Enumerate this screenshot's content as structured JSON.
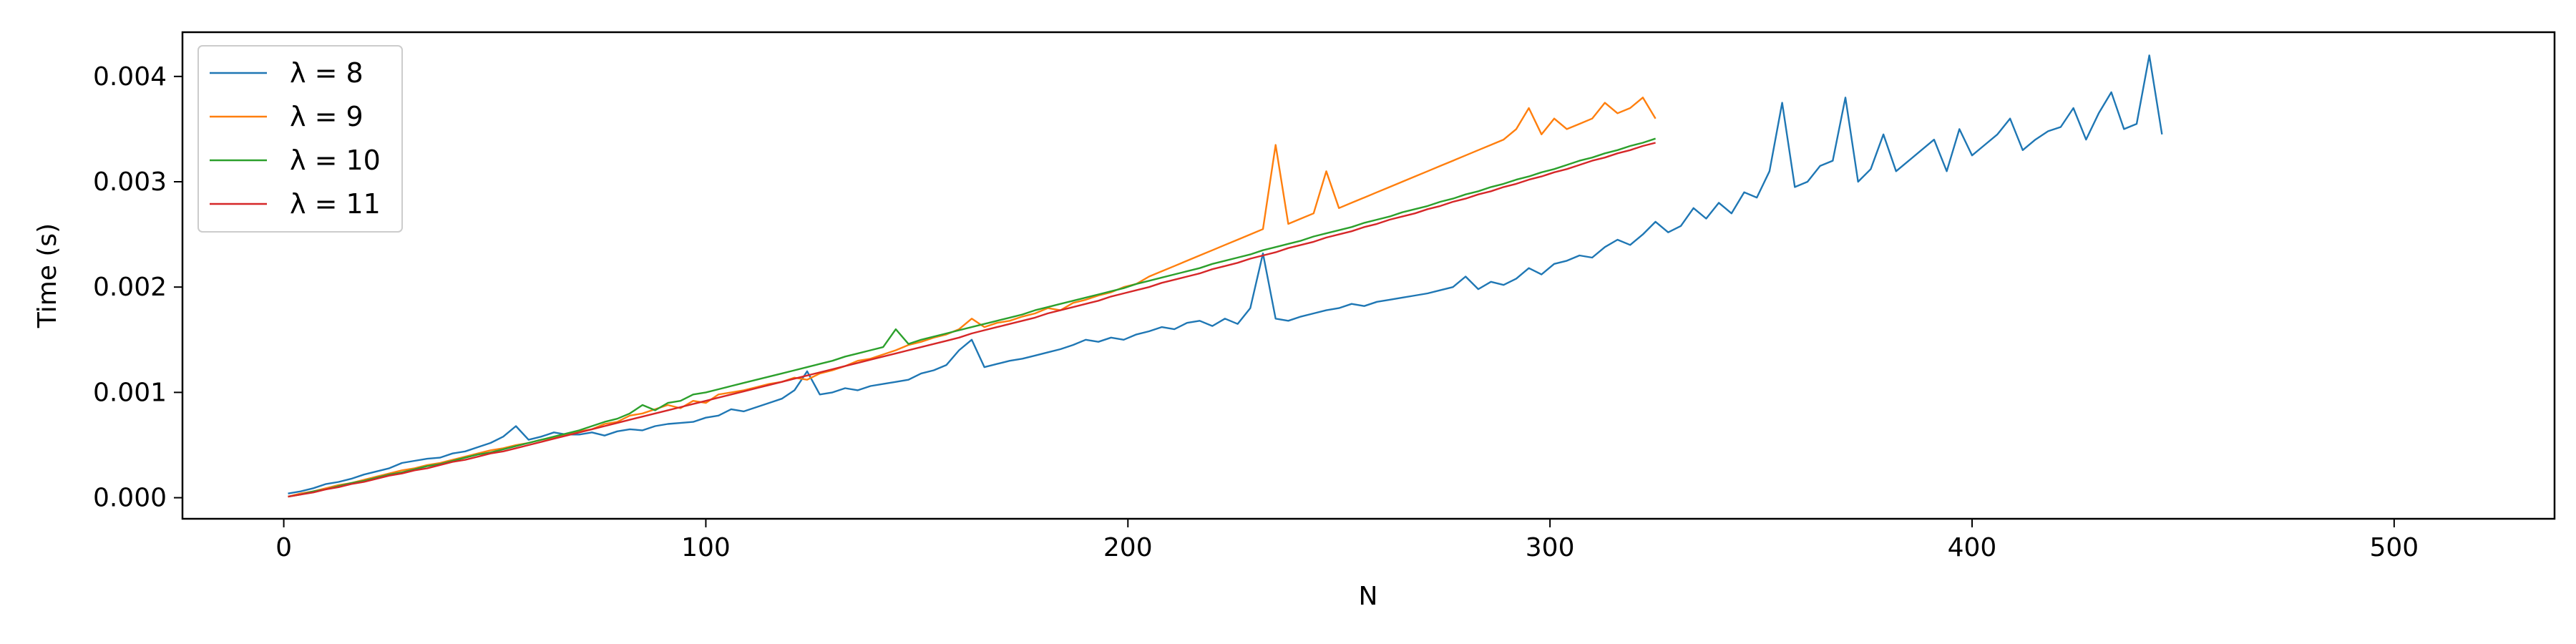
{
  "chart_data": {
    "type": "line",
    "title": "",
    "xlabel": "N",
    "ylabel": "Time (s)",
    "xlim": [
      -24,
      538
    ],
    "ylim": [
      -0.0002,
      0.00442
    ],
    "xticks": [
      0,
      100,
      200,
      300,
      400,
      500
    ],
    "xtick_labels": [
      "0",
      "100",
      "200",
      "300",
      "400",
      "500"
    ],
    "yticks": [
      0.0,
      0.001,
      0.002,
      0.003,
      0.004
    ],
    "ytick_labels": [
      "0.000",
      "0.001",
      "0.002",
      "0.003",
      "0.004"
    ],
    "grid": false,
    "legend_position": "upper-left",
    "x_start": 1,
    "x_step": 3,
    "series": [
      {
        "name": "λ = 8",
        "color": "#1f77b4",
        "values": [
          4e-05,
          6e-05,
          9e-05,
          0.00013,
          0.00015,
          0.00018,
          0.00022,
          0.00025,
          0.00028,
          0.00033,
          0.00035,
          0.00037,
          0.00038,
          0.00042,
          0.00044,
          0.00048,
          0.00052,
          0.00058,
          0.00068,
          0.00055,
          0.00058,
          0.00062,
          0.0006,
          0.0006,
          0.00062,
          0.00059,
          0.00063,
          0.00065,
          0.00064,
          0.00068,
          0.0007,
          0.00071,
          0.00072,
          0.00076,
          0.00078,
          0.00084,
          0.00082,
          0.00086,
          0.0009,
          0.00094,
          0.00102,
          0.0012,
          0.00098,
          0.001,
          0.00104,
          0.00102,
          0.00106,
          0.00108,
          0.0011,
          0.00112,
          0.00118,
          0.00121,
          0.00126,
          0.0014,
          0.0015,
          0.00124,
          0.00127,
          0.0013,
          0.00132,
          0.00135,
          0.00138,
          0.00141,
          0.00145,
          0.0015,
          0.00148,
          0.00152,
          0.0015,
          0.00155,
          0.00158,
          0.00162,
          0.0016,
          0.00166,
          0.00168,
          0.00163,
          0.0017,
          0.00165,
          0.0018,
          0.00232,
          0.0017,
          0.00168,
          0.00172,
          0.00175,
          0.00178,
          0.0018,
          0.00184,
          0.00182,
          0.00186,
          0.00188,
          0.0019,
          0.00192,
          0.00194,
          0.00197,
          0.002,
          0.0021,
          0.00198,
          0.00205,
          0.00202,
          0.00208,
          0.00218,
          0.00212,
          0.00222,
          0.00225,
          0.0023,
          0.00228,
          0.00238,
          0.00245,
          0.0024,
          0.0025,
          0.00262,
          0.00252,
          0.00258,
          0.00275,
          0.00265,
          0.0028,
          0.0027,
          0.0029,
          0.00285,
          0.0031,
          0.00375,
          0.00295,
          0.003,
          0.00315,
          0.0032,
          0.0038,
          0.003,
          0.00312,
          0.00345,
          0.0031,
          0.0032,
          0.0033,
          0.0034,
          0.0031,
          0.0035,
          0.00325,
          0.00335,
          0.00345,
          0.0036,
          0.0033,
          0.0034,
          0.00348,
          0.00352,
          0.0037,
          0.0034,
          0.00365,
          0.00385,
          0.0035,
          0.00355,
          0.0042,
          0.00345
        ]
      },
      {
        "name": "λ = 9",
        "color": "#ff7f0e",
        "values": [
          1e-05,
          4e-05,
          6e-05,
          9e-05,
          0.00012,
          0.00014,
          0.00017,
          0.0002,
          0.00023,
          0.00026,
          0.00028,
          0.00031,
          0.00033,
          0.00036,
          0.00039,
          0.00042,
          0.00045,
          0.00047,
          0.0005,
          0.00052,
          0.00055,
          0.00057,
          0.0006,
          0.00063,
          0.00065,
          0.0007,
          0.00072,
          0.00078,
          0.0008,
          0.00084,
          0.00088,
          0.00085,
          0.00092,
          0.0009,
          0.00098,
          0.001,
          0.00102,
          0.00105,
          0.00108,
          0.0011,
          0.00114,
          0.00112,
          0.00118,
          0.00121,
          0.00125,
          0.0013,
          0.00132,
          0.00136,
          0.0014,
          0.00145,
          0.00148,
          0.00152,
          0.00155,
          0.0016,
          0.0017,
          0.00162,
          0.00166,
          0.00168,
          0.00172,
          0.00175,
          0.0018,
          0.00178,
          0.00185,
          0.00188,
          0.00192,
          0.00195,
          0.002,
          0.00203,
          0.0021,
          0.00215,
          0.0022,
          0.00225,
          0.0023,
          0.00235,
          0.0024,
          0.00245,
          0.0025,
          0.00255,
          0.00335,
          0.0026,
          0.00265,
          0.0027,
          0.0031,
          0.00275,
          0.0028,
          0.00285,
          0.0029,
          0.00295,
          0.003,
          0.00305,
          0.0031,
          0.00315,
          0.0032,
          0.00325,
          0.0033,
          0.00335,
          0.0034,
          0.0035,
          0.0037,
          0.00345,
          0.0036,
          0.0035,
          0.00355,
          0.0036,
          0.00375,
          0.00365,
          0.0037,
          0.0038,
          0.0036
        ]
      },
      {
        "name": "λ = 10",
        "color": "#2ca02c",
        "values": [
          1e-05,
          3e-05,
          6e-05,
          8e-05,
          0.00011,
          0.00014,
          0.00016,
          0.00019,
          0.00022,
          0.00024,
          0.00027,
          0.0003,
          0.00032,
          0.00035,
          0.00038,
          0.00041,
          0.00043,
          0.00046,
          0.00049,
          0.00052,
          0.00055,
          0.00058,
          0.00061,
          0.00064,
          0.00068,
          0.00072,
          0.00075,
          0.0008,
          0.00088,
          0.00083,
          0.0009,
          0.00092,
          0.00098,
          0.001,
          0.00103,
          0.00106,
          0.00109,
          0.00112,
          0.00115,
          0.00118,
          0.00121,
          0.00124,
          0.00127,
          0.0013,
          0.00134,
          0.00137,
          0.0014,
          0.00143,
          0.0016,
          0.00146,
          0.0015,
          0.00153,
          0.00156,
          0.00159,
          0.00162,
          0.00165,
          0.00168,
          0.00171,
          0.00174,
          0.00178,
          0.00181,
          0.00184,
          0.00187,
          0.0019,
          0.00193,
          0.00196,
          0.00199,
          0.00203,
          0.00206,
          0.00209,
          0.00212,
          0.00215,
          0.00218,
          0.00222,
          0.00225,
          0.00228,
          0.00231,
          0.00235,
          0.00238,
          0.00241,
          0.00244,
          0.00248,
          0.00251,
          0.00254,
          0.00257,
          0.00261,
          0.00264,
          0.00267,
          0.00271,
          0.00274,
          0.00277,
          0.00281,
          0.00284,
          0.00288,
          0.00291,
          0.00295,
          0.00298,
          0.00302,
          0.00305,
          0.00309,
          0.00312,
          0.00316,
          0.0032,
          0.00323,
          0.00327,
          0.0033,
          0.00334,
          0.00337,
          0.00341
        ]
      },
      {
        "name": "λ = 11",
        "color": "#d62728",
        "values": [
          1e-05,
          3e-05,
          5e-05,
          8e-05,
          0.0001,
          0.00013,
          0.00015,
          0.00018,
          0.00021,
          0.00023,
          0.00026,
          0.00028,
          0.00031,
          0.00034,
          0.00036,
          0.00039,
          0.00042,
          0.00044,
          0.00047,
          0.0005,
          0.00053,
          0.00056,
          0.00059,
          0.00062,
          0.00065,
          0.00068,
          0.00071,
          0.00074,
          0.00077,
          0.0008,
          0.00083,
          0.00086,
          0.00089,
          0.00092,
          0.00095,
          0.00098,
          0.00101,
          0.00104,
          0.00107,
          0.0011,
          0.00113,
          0.00116,
          0.00119,
          0.00122,
          0.00125,
          0.00128,
          0.00131,
          0.00134,
          0.00137,
          0.0014,
          0.00143,
          0.00146,
          0.00149,
          0.00152,
          0.00156,
          0.00159,
          0.00162,
          0.00165,
          0.00168,
          0.00171,
          0.00175,
          0.00178,
          0.00181,
          0.00184,
          0.00187,
          0.00191,
          0.00194,
          0.00197,
          0.002,
          0.00204,
          0.00207,
          0.0021,
          0.00213,
          0.00217,
          0.0022,
          0.00223,
          0.00227,
          0.0023,
          0.00233,
          0.00237,
          0.0024,
          0.00243,
          0.00247,
          0.0025,
          0.00253,
          0.00257,
          0.0026,
          0.00264,
          0.00267,
          0.0027,
          0.00274,
          0.00277,
          0.00281,
          0.00284,
          0.00288,
          0.00291,
          0.00295,
          0.00298,
          0.00302,
          0.00305,
          0.00309,
          0.00312,
          0.00316,
          0.0032,
          0.00323,
          0.00327,
          0.0033,
          0.00334,
          0.00337
        ]
      }
    ]
  }
}
